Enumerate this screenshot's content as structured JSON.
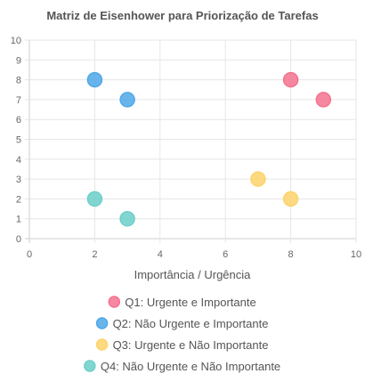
{
  "chart_data": {
    "type": "scatter",
    "title": "Matriz de Eisenhower para Priorização de Tarefas",
    "xlabel": "Importância / Urgência",
    "ylabel": "",
    "xlim": [
      0,
      10
    ],
    "ylim": [
      0,
      10
    ],
    "x_ticks": [
      0,
      2,
      4,
      6,
      8,
      10
    ],
    "y_ticks": [
      0,
      1,
      2,
      3,
      4,
      5,
      6,
      7,
      8,
      9,
      10
    ],
    "grid": true,
    "legend_position": "bottom",
    "series": [
      {
        "name": "Q1: Urgente e Importante",
        "color": "#f4728f",
        "points": [
          {
            "x": 8,
            "y": 8
          },
          {
            "x": 9,
            "y": 7
          }
        ]
      },
      {
        "name": "Q2: Não Urgente e Importante",
        "color": "#4fa8e8",
        "points": [
          {
            "x": 2,
            "y": 8
          },
          {
            "x": 3,
            "y": 7
          }
        ]
      },
      {
        "name": "Q3: Urgente e Não Importante",
        "color": "#fdd36b",
        "points": [
          {
            "x": 7,
            "y": 3
          },
          {
            "x": 8,
            "y": 2
          }
        ]
      },
      {
        "name": "Q4: Não Urgente e Não Importante",
        "color": "#6ccfc9",
        "points": [
          {
            "x": 2,
            "y": 2
          },
          {
            "x": 3,
            "y": 1
          }
        ]
      }
    ]
  }
}
